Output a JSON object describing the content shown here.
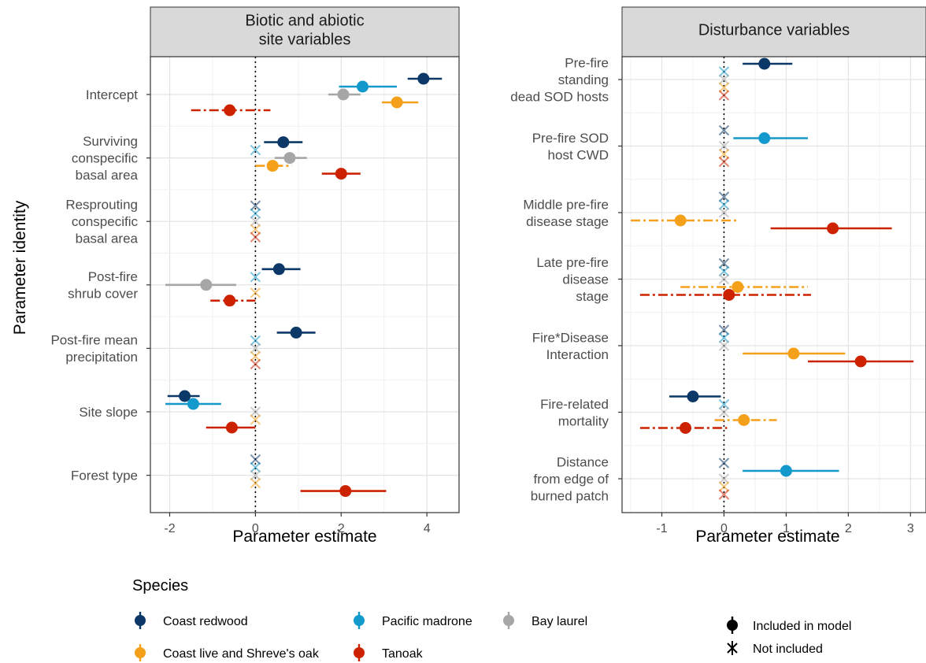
{
  "species_colors": {
    "redwood": "#0b3866",
    "madrone": "#1499cc",
    "laurel": "#a6a6a6",
    "oak": "#f5a01a",
    "tanoak": "#cc2200"
  },
  "y_axis_label": "Parameter identity",
  "legend": {
    "title": "Species",
    "species": [
      {
        "key": "redwood",
        "label": "Coast redwood"
      },
      {
        "key": "madrone",
        "label": "Pacific madrone"
      },
      {
        "key": "laurel",
        "label": "Bay laurel"
      },
      {
        "key": "oak",
        "label": "Coast live and Shreve's oak"
      },
      {
        "key": "tanoak",
        "label": "Tanoak"
      }
    ],
    "included_label": "Included in model",
    "not_included_label": "Not included"
  },
  "chart_data": [
    {
      "type": "scatter",
      "title": "Biotic and abiotic\nsite variables",
      "xlabel": "Parameter estimate",
      "ylabel": "Parameter identity",
      "xlim": [
        -2.45,
        4.75
      ],
      "xticks": [
        -2,
        0,
        2,
        4
      ],
      "xtick_labels": [
        "-2",
        "0",
        "2",
        "4"
      ],
      "grid": true,
      "categories": [
        {
          "label": "Intercept",
          "points": [
            {
              "species": "redwood",
              "est": 3.92,
              "lo": 3.55,
              "hi": 4.35,
              "included": true,
              "dashed": false
            },
            {
              "species": "madrone",
              "est": 2.5,
              "lo": 1.95,
              "hi": 3.3,
              "included": true,
              "dashed": false
            },
            {
              "species": "laurel",
              "est": 2.05,
              "lo": 1.7,
              "hi": 2.45,
              "included": true,
              "dashed": false
            },
            {
              "species": "oak",
              "est": 3.3,
              "lo": 2.95,
              "hi": 3.8,
              "included": true,
              "dashed": false
            },
            {
              "species": "tanoak",
              "est": -0.6,
              "lo": -1.5,
              "hi": 0.35,
              "included": true,
              "dashed": true
            }
          ]
        },
        {
          "label": "Surviving\nconspecific\nbasal area",
          "points": [
            {
              "species": "redwood",
              "est": 0.65,
              "lo": 0.2,
              "hi": 1.1,
              "included": true,
              "dashed": false
            },
            {
              "species": "madrone",
              "est": 0,
              "included": false
            },
            {
              "species": "laurel",
              "est": 0.8,
              "lo": 0.45,
              "hi": 1.2,
              "included": true,
              "dashed": false
            },
            {
              "species": "oak",
              "est": 0.4,
              "lo": 0.0,
              "hi": 0.85,
              "included": true,
              "dashed": true
            },
            {
              "species": "tanoak",
              "est": 2.0,
              "lo": 1.55,
              "hi": 2.45,
              "included": true,
              "dashed": false
            }
          ]
        },
        {
          "label": "Resprouting\nconspecific\nbasal area",
          "points": [
            {
              "species": "redwood",
              "est": 0,
              "included": false
            },
            {
              "species": "madrone",
              "est": 0,
              "included": false
            },
            {
              "species": "laurel",
              "est": 0,
              "included": false
            },
            {
              "species": "oak",
              "est": 0,
              "included": false
            },
            {
              "species": "tanoak",
              "est": 0,
              "included": false
            }
          ]
        },
        {
          "label": "Post-fire\nshrub cover",
          "points": [
            {
              "species": "redwood",
              "est": 0.55,
              "lo": 0.15,
              "hi": 1.05,
              "included": true,
              "dashed": false
            },
            {
              "species": "madrone",
              "est": 0,
              "included": false
            },
            {
              "species": "laurel",
              "est": -1.15,
              "lo": -2.1,
              "hi": -0.45,
              "included": true,
              "dashed": false
            },
            {
              "species": "oak",
              "est": 0,
              "included": false
            },
            {
              "species": "tanoak",
              "est": -0.6,
              "lo": -1.05,
              "hi": 0.0,
              "included": true,
              "dashed": true
            }
          ]
        },
        {
          "label": "Post-fire mean\nprecipitation",
          "points": [
            {
              "species": "redwood",
              "est": 0.95,
              "lo": 0.5,
              "hi": 1.4,
              "included": true,
              "dashed": false
            },
            {
              "species": "madrone",
              "est": 0,
              "included": false
            },
            {
              "species": "laurel",
              "est": 0,
              "included": false
            },
            {
              "species": "oak",
              "est": 0,
              "included": false
            },
            {
              "species": "tanoak",
              "est": 0,
              "included": false
            }
          ]
        },
        {
          "label": "Site slope",
          "points": [
            {
              "species": "redwood",
              "est": -1.65,
              "lo": -2.05,
              "hi": -1.3,
              "included": true,
              "dashed": false
            },
            {
              "species": "madrone",
              "est": -1.45,
              "lo": -2.1,
              "hi": -0.8,
              "included": true,
              "dashed": false
            },
            {
              "species": "laurel",
              "est": 0,
              "included": false
            },
            {
              "species": "oak",
              "est": 0,
              "included": false
            },
            {
              "species": "tanoak",
              "est": -0.55,
              "lo": -1.15,
              "hi": 0.0,
              "included": true,
              "dashed": false
            }
          ]
        },
        {
          "label": "Forest type",
          "points": [
            {
              "species": "redwood",
              "est": 0,
              "included": false
            },
            {
              "species": "madrone",
              "est": 0,
              "included": false
            },
            {
              "species": "laurel",
              "est": 0,
              "included": false
            },
            {
              "species": "oak",
              "est": 0,
              "included": false
            },
            {
              "species": "tanoak",
              "est": 2.1,
              "lo": 1.05,
              "hi": 3.05,
              "included": true,
              "dashed": false
            }
          ]
        }
      ]
    },
    {
      "type": "scatter",
      "title": "Disturbance variables",
      "xlabel": "Parameter estimate",
      "ylabel": "",
      "xlim": [
        -1.64,
        3.25
      ],
      "xticks": [
        -1,
        0,
        1,
        2,
        3
      ],
      "xtick_labels": [
        "-1",
        "0",
        "1",
        "2",
        "3"
      ],
      "grid": true,
      "categories": [
        {
          "label": "Pre-fire\nstanding\ndead SOD hosts",
          "points": [
            {
              "species": "redwood",
              "est": 0.65,
              "lo": 0.3,
              "hi": 1.1,
              "included": true,
              "dashed": false
            },
            {
              "species": "madrone",
              "est": 0,
              "included": false
            },
            {
              "species": "laurel",
              "est": 0,
              "included": false
            },
            {
              "species": "oak",
              "est": 0,
              "included": false
            },
            {
              "species": "tanoak",
              "est": 0,
              "included": false
            }
          ]
        },
        {
          "label": "Pre-fire SOD\nhost CWD",
          "points": [
            {
              "species": "redwood",
              "est": 0,
              "included": false
            },
            {
              "species": "madrone",
              "est": 0.65,
              "lo": 0.15,
              "hi": 1.35,
              "included": true,
              "dashed": false
            },
            {
              "species": "laurel",
              "est": 0,
              "included": false
            },
            {
              "species": "oak",
              "est": 0,
              "included": false
            },
            {
              "species": "tanoak",
              "est": 0,
              "included": false
            }
          ]
        },
        {
          "label": "Middle pre-fire\ndisease stage",
          "points": [
            {
              "species": "redwood",
              "est": 0,
              "included": false
            },
            {
              "species": "madrone",
              "est": 0,
              "included": false
            },
            {
              "species": "laurel",
              "est": 0,
              "included": false
            },
            {
              "species": "oak",
              "est": -0.7,
              "lo": -1.5,
              "hi": 0.2,
              "included": true,
              "dashed": true
            },
            {
              "species": "tanoak",
              "est": 1.75,
              "lo": 0.75,
              "hi": 2.7,
              "included": true,
              "dashed": false
            }
          ]
        },
        {
          "label": "Late pre-fire\ndisease\nstage",
          "points": [
            {
              "species": "redwood",
              "est": 0,
              "included": false
            },
            {
              "species": "madrone",
              "est": 0,
              "included": false
            },
            {
              "species": "laurel",
              "est": 0,
              "included": false
            },
            {
              "species": "oak",
              "est": 0.22,
              "lo": -0.7,
              "hi": 1.35,
              "included": true,
              "dashed": true
            },
            {
              "species": "tanoak",
              "est": 0.08,
              "lo": -1.35,
              "hi": 1.4,
              "included": true,
              "dashed": true
            }
          ]
        },
        {
          "label": "Fire*Disease\nInteraction",
          "points": [
            {
              "species": "redwood",
              "est": 0,
              "included": false
            },
            {
              "species": "madrone",
              "est": 0,
              "included": false
            },
            {
              "species": "laurel",
              "est": 0,
              "included": false
            },
            {
              "species": "oak",
              "est": 1.12,
              "lo": 0.3,
              "hi": 1.95,
              "included": true,
              "dashed": false
            },
            {
              "species": "tanoak",
              "est": 2.2,
              "lo": 1.35,
              "hi": 3.05,
              "included": true,
              "dashed": false
            }
          ]
        },
        {
          "label": "Fire-related\nmortality",
          "points": [
            {
              "species": "redwood",
              "est": -0.5,
              "lo": -0.88,
              "hi": -0.05,
              "included": true,
              "dashed": false
            },
            {
              "species": "madrone",
              "est": 0,
              "included": false
            },
            {
              "species": "laurel",
              "est": 0,
              "included": false
            },
            {
              "species": "oak",
              "est": 0.32,
              "lo": -0.15,
              "hi": 0.85,
              "included": true,
              "dashed": true
            },
            {
              "species": "tanoak",
              "est": -0.62,
              "lo": -1.35,
              "hi": 0.05,
              "included": true,
              "dashed": true
            }
          ]
        },
        {
          "label": "Distance\nfrom edge of\nburned patch",
          "points": [
            {
              "species": "redwood",
              "est": 0,
              "included": false
            },
            {
              "species": "madrone",
              "est": 1.0,
              "lo": 0.3,
              "hi": 1.85,
              "included": true,
              "dashed": false
            },
            {
              "species": "laurel",
              "est": 0,
              "included": false
            },
            {
              "species": "oak",
              "est": 0,
              "included": false
            },
            {
              "species": "tanoak",
              "est": 0,
              "included": false
            }
          ]
        }
      ]
    }
  ]
}
